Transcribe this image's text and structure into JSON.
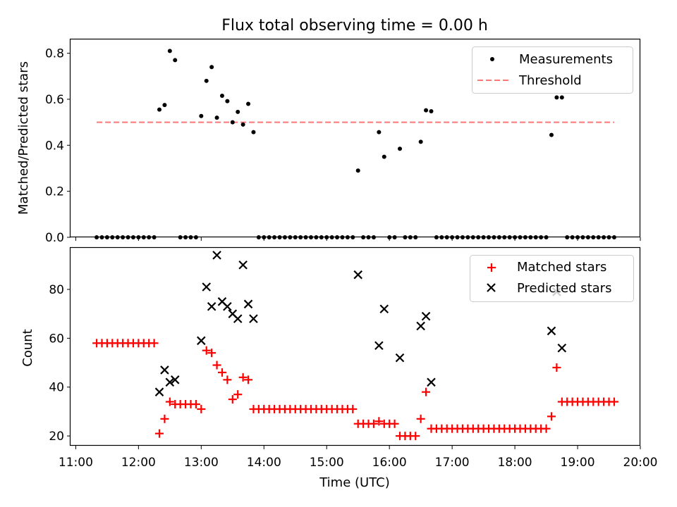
{
  "chart_data": {
    "type": "scatter",
    "title": "Flux total observing time = 0.00 h",
    "xlabel": "Time (UTC)",
    "x_ticks": [
      "11:00",
      "12:00",
      "13:00",
      "14:00",
      "15:00",
      "16:00",
      "17:00",
      "18:00",
      "19:00",
      "20:00"
    ],
    "xlim": [
      "10:55",
      "20:00"
    ],
    "grid": false,
    "top_panel": {
      "ylabel": "Matched/Predicted stars",
      "ylim": [
        0,
        0.86
      ],
      "y_ticks": [
        "0.0",
        "0.2",
        "0.4",
        "0.6",
        "0.8"
      ],
      "legend_position": "top-right",
      "series": [
        {
          "name": "Measurements",
          "marker": "dot",
          "color": "#000000",
          "points": [
            [
              "11:20",
              0
            ],
            [
              "11:25",
              0
            ],
            [
              "11:30",
              0
            ],
            [
              "11:35",
              0
            ],
            [
              "11:40",
              0
            ],
            [
              "11:45",
              0
            ],
            [
              "11:50",
              0
            ],
            [
              "11:55",
              0
            ],
            [
              "12:00",
              0
            ],
            [
              "12:05",
              0
            ],
            [
              "12:10",
              0
            ],
            [
              "12:15",
              0
            ],
            [
              "12:20",
              0.555
            ],
            [
              "12:25",
              0.575
            ],
            [
              "12:30",
              0.81
            ],
            [
              "12:35",
              0.77
            ],
            [
              "12:40",
              0
            ],
            [
              "12:45",
              0
            ],
            [
              "12:50",
              0
            ],
            [
              "12:55",
              0
            ],
            [
              "13:00",
              0.527
            ],
            [
              "13:05",
              0.68
            ],
            [
              "13:10",
              0.74
            ],
            [
              "13:15",
              0.52
            ],
            [
              "13:20",
              0.615
            ],
            [
              "13:25",
              0.592
            ],
            [
              "13:30",
              0.5
            ],
            [
              "13:35",
              0.545
            ],
            [
              "13:40",
              0.49
            ],
            [
              "13:45",
              0.58
            ],
            [
              "13:50",
              0.457
            ],
            [
              "13:55",
              0
            ],
            [
              "14:00",
              0
            ],
            [
              "14:05",
              0
            ],
            [
              "14:10",
              0
            ],
            [
              "14:15",
              0
            ],
            [
              "14:20",
              0
            ],
            [
              "14:25",
              0
            ],
            [
              "14:30",
              0
            ],
            [
              "14:35",
              0
            ],
            [
              "14:40",
              0
            ],
            [
              "14:45",
              0
            ],
            [
              "14:50",
              0
            ],
            [
              "14:55",
              0
            ],
            [
              "15:00",
              0
            ],
            [
              "15:05",
              0
            ],
            [
              "15:10",
              0
            ],
            [
              "15:15",
              0
            ],
            [
              "15:20",
              0
            ],
            [
              "15:25",
              0
            ],
            [
              "15:30",
              0.29
            ],
            [
              "15:35",
              0
            ],
            [
              "15:40",
              0
            ],
            [
              "15:45",
              0
            ],
            [
              "15:50",
              0.457
            ],
            [
              "15:55",
              0.35
            ],
            [
              "16:00",
              0
            ],
            [
              "16:05",
              0
            ],
            [
              "16:10",
              0.385
            ],
            [
              "16:15",
              0
            ],
            [
              "16:20",
              0
            ],
            [
              "16:25",
              0
            ],
            [
              "16:30",
              0.415
            ],
            [
              "16:35",
              0.552
            ],
            [
              "16:40",
              0.548
            ],
            [
              "16:45",
              0
            ],
            [
              "16:50",
              0
            ],
            [
              "16:55",
              0
            ],
            [
              "17:00",
              0
            ],
            [
              "17:05",
              0
            ],
            [
              "17:10",
              0
            ],
            [
              "17:15",
              0
            ],
            [
              "17:20",
              0
            ],
            [
              "17:25",
              0
            ],
            [
              "17:30",
              0
            ],
            [
              "17:35",
              0
            ],
            [
              "17:40",
              0
            ],
            [
              "17:45",
              0
            ],
            [
              "17:50",
              0
            ],
            [
              "17:55",
              0
            ],
            [
              "18:00",
              0
            ],
            [
              "18:05",
              0
            ],
            [
              "18:10",
              0
            ],
            [
              "18:15",
              0
            ],
            [
              "18:20",
              0
            ],
            [
              "18:25",
              0
            ],
            [
              "18:30",
              0
            ],
            [
              "18:35",
              0.445
            ],
            [
              "18:40",
              0.608
            ],
            [
              "18:45",
              0.608
            ],
            [
              "18:50",
              0
            ],
            [
              "18:55",
              0
            ],
            [
              "19:00",
              0
            ],
            [
              "19:05",
              0
            ],
            [
              "19:10",
              0
            ],
            [
              "19:15",
              0
            ],
            [
              "19:20",
              0
            ],
            [
              "19:25",
              0
            ],
            [
              "19:30",
              0
            ],
            [
              "19:35",
              0
            ]
          ]
        },
        {
          "name": "Threshold",
          "marker": "dashed-line",
          "color": "#ff7777",
          "points": [
            [
              "11:20",
              0.5
            ],
            [
              "19:35",
              0.5
            ]
          ]
        }
      ]
    },
    "bottom_panel": {
      "ylabel": "Count",
      "ylim": [
        16,
        97
      ],
      "y_ticks": [
        "20",
        "40",
        "60",
        "80"
      ],
      "legend_position": "top-right",
      "series": [
        {
          "name": "Matched stars",
          "marker": "plus",
          "color": "#ff0000",
          "points": [
            [
              "11:20",
              58
            ],
            [
              "11:25",
              58
            ],
            [
              "11:30",
              58
            ],
            [
              "11:35",
              58
            ],
            [
              "11:40",
              58
            ],
            [
              "11:45",
              58
            ],
            [
              "11:50",
              58
            ],
            [
              "11:55",
              58
            ],
            [
              "12:00",
              58
            ],
            [
              "12:05",
              58
            ],
            [
              "12:10",
              58
            ],
            [
              "12:15",
              58
            ],
            [
              "12:20",
              21
            ],
            [
              "12:25",
              27
            ],
            [
              "12:30",
              34
            ],
            [
              "12:35",
              33
            ],
            [
              "12:40",
              33
            ],
            [
              "12:45",
              33
            ],
            [
              "12:50",
              33
            ],
            [
              "12:55",
              33
            ],
            [
              "13:00",
              31
            ],
            [
              "13:05",
              55
            ],
            [
              "13:10",
              54
            ],
            [
              "13:15",
              49
            ],
            [
              "13:20",
              46
            ],
            [
              "13:25",
              43
            ],
            [
              "13:30",
              35
            ],
            [
              "13:35",
              37
            ],
            [
              "13:40",
              44
            ],
            [
              "13:45",
              43
            ],
            [
              "13:50",
              31
            ],
            [
              "13:55",
              31
            ],
            [
              "14:00",
              31
            ],
            [
              "14:05",
              31
            ],
            [
              "14:10",
              31
            ],
            [
              "14:15",
              31
            ],
            [
              "14:20",
              31
            ],
            [
              "14:25",
              31
            ],
            [
              "14:30",
              31
            ],
            [
              "14:35",
              31
            ],
            [
              "14:40",
              31
            ],
            [
              "14:45",
              31
            ],
            [
              "14:50",
              31
            ],
            [
              "14:55",
              31
            ],
            [
              "15:00",
              31
            ],
            [
              "15:05",
              31
            ],
            [
              "15:10",
              31
            ],
            [
              "15:15",
              31
            ],
            [
              "15:20",
              31
            ],
            [
              "15:25",
              31
            ],
            [
              "15:30",
              25
            ],
            [
              "15:35",
              25
            ],
            [
              "15:40",
              25
            ],
            [
              "15:45",
              25
            ],
            [
              "15:50",
              26
            ],
            [
              "15:55",
              25
            ],
            [
              "16:00",
              25
            ],
            [
              "16:05",
              25
            ],
            [
              "16:10",
              20
            ],
            [
              "16:15",
              20
            ],
            [
              "16:20",
              20
            ],
            [
              "16:25",
              20
            ],
            [
              "16:30",
              27
            ],
            [
              "16:35",
              38
            ],
            [
              "16:40",
              23
            ],
            [
              "16:45",
              23
            ],
            [
              "16:50",
              23
            ],
            [
              "16:55",
              23
            ],
            [
              "17:00",
              23
            ],
            [
              "17:05",
              23
            ],
            [
              "17:10",
              23
            ],
            [
              "17:15",
              23
            ],
            [
              "17:20",
              23
            ],
            [
              "17:25",
              23
            ],
            [
              "17:30",
              23
            ],
            [
              "17:35",
              23
            ],
            [
              "17:40",
              23
            ],
            [
              "17:45",
              23
            ],
            [
              "17:50",
              23
            ],
            [
              "17:55",
              23
            ],
            [
              "18:00",
              23
            ],
            [
              "18:05",
              23
            ],
            [
              "18:10",
              23
            ],
            [
              "18:15",
              23
            ],
            [
              "18:20",
              23
            ],
            [
              "18:25",
              23
            ],
            [
              "18:30",
              23
            ],
            [
              "18:35",
              28
            ],
            [
              "18:40",
              48
            ],
            [
              "18:45",
              34
            ],
            [
              "18:50",
              34
            ],
            [
              "18:55",
              34
            ],
            [
              "19:00",
              34
            ],
            [
              "19:05",
              34
            ],
            [
              "19:10",
              34
            ],
            [
              "19:15",
              34
            ],
            [
              "19:20",
              34
            ],
            [
              "19:25",
              34
            ],
            [
              "19:30",
              34
            ],
            [
              "19:35",
              34
            ]
          ]
        },
        {
          "name": "Predicted stars",
          "marker": "x",
          "color": "#000000",
          "points": [
            [
              "12:20",
              38
            ],
            [
              "12:25",
              47
            ],
            [
              "12:30",
              42
            ],
            [
              "12:35",
              43
            ],
            [
              "13:00",
              59
            ],
            [
              "13:05",
              81
            ],
            [
              "13:10",
              73
            ],
            [
              "13:15",
              94
            ],
            [
              "13:20",
              75
            ],
            [
              "13:25",
              73
            ],
            [
              "13:30",
              70
            ],
            [
              "13:35",
              68
            ],
            [
              "13:40",
              90
            ],
            [
              "13:45",
              74
            ],
            [
              "13:50",
              68
            ],
            [
              "15:30",
              86
            ],
            [
              "15:50",
              57
            ],
            [
              "15:55",
              72
            ],
            [
              "16:10",
              52
            ],
            [
              "16:30",
              65
            ],
            [
              "16:35",
              69
            ],
            [
              "16:40",
              42
            ],
            [
              "18:35",
              63
            ],
            [
              "18:40",
              79
            ],
            [
              "18:45",
              56
            ]
          ]
        }
      ]
    }
  }
}
